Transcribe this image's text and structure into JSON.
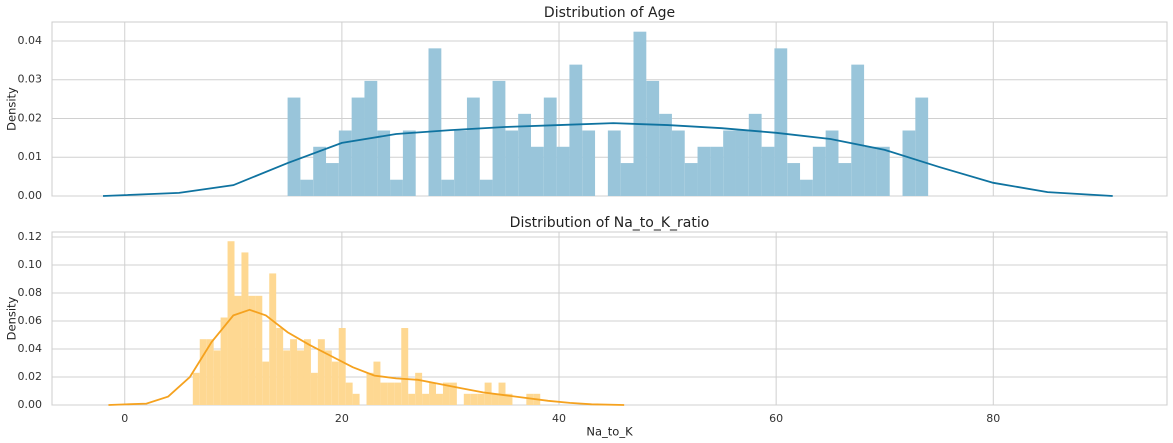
{
  "chart_data": [
    {
      "type": "histogram",
      "title": "Distribution of Age",
      "ylabel": "Density",
      "bins": [
        15,
        16.18,
        17.36,
        18.54,
        19.72,
        20.9,
        22.08,
        23.26,
        24.44,
        25.62,
        26.8,
        27.98,
        29.16,
        30.34,
        31.52,
        32.7,
        33.88,
        35.06,
        36.24,
        37.42,
        38.6,
        39.78,
        40.96,
        42.14,
        43.32,
        44.5,
        45.68,
        46.86,
        48.04,
        49.22,
        50.4,
        51.58,
        52.76,
        53.94,
        55.12,
        56.3,
        57.48,
        58.66,
        59.84,
        61.02,
        62.2,
        63.38,
        64.56,
        65.74,
        66.92,
        68.1,
        69.28,
        70.46,
        71.64,
        72.82,
        74
      ],
      "values": [
        0.0254,
        0.0042,
        0.0127,
        0.0085,
        0.0169,
        0.0254,
        0.0297,
        0.0169,
        0.0042,
        0.0169,
        0,
        0.0381,
        0.0042,
        0.0169,
        0.0254,
        0.0042,
        0.0297,
        0.0169,
        0.0212,
        0.0127,
        0.0254,
        0.0127,
        0.0339,
        0.0169,
        0,
        0.0169,
        0.0085,
        0.0424,
        0.0297,
        0.0212,
        0.0169,
        0.0085,
        0.0127,
        0.0127,
        0.0169,
        0.0169,
        0.0212,
        0.0127,
        0.0381,
        0.0085,
        0.0042,
        0.0127,
        0.0169,
        0.0085,
        0.0339,
        0.0127,
        0.0127,
        0,
        0.0169,
        0.0254
      ],
      "color": "#99c5da",
      "kde_color": "#0f73a0",
      "kde_x": [
        -2,
        5,
        10,
        15,
        20,
        25,
        30,
        35,
        40,
        45,
        50,
        55,
        60,
        65,
        70,
        75,
        80,
        85,
        91
      ],
      "kde_values": [
        0.0,
        0.0008,
        0.0028,
        0.0085,
        0.0137,
        0.016,
        0.017,
        0.0178,
        0.0183,
        0.0188,
        0.0183,
        0.0175,
        0.0163,
        0.0147,
        0.0119,
        0.0075,
        0.0034,
        0.001,
        0.0
      ],
      "xlim": [
        -6.7,
        96.0
      ],
      "xticks": [
        0,
        20,
        40,
        60,
        80
      ],
      "show_xtick_labels": false,
      "ylim": [
        0,
        0.0449
      ],
      "yticks": [
        {
          "value": 0,
          "label": "0.00"
        },
        {
          "value": 0.01,
          "label": "0.01"
        },
        {
          "value": 0.02,
          "label": "0.02"
        },
        {
          "value": 0.03,
          "label": "0.03"
        },
        {
          "value": 0.04,
          "label": "0.04"
        }
      ],
      "grid": true
    },
    {
      "type": "histogram",
      "title": "Distribution of Na_to_K_ratio",
      "ylabel": "Density",
      "xlabel": "Na_to_K",
      "bins": [
        6.27,
        6.91,
        7.55,
        8.19,
        8.83,
        9.47,
        10.11,
        10.75,
        11.39,
        12.03,
        12.67,
        13.31,
        13.95,
        14.59,
        15.23,
        15.87,
        16.51,
        17.15,
        17.79,
        18.43,
        19.07,
        19.71,
        20.35,
        20.99,
        21.63,
        22.27,
        22.91,
        23.55,
        24.19,
        24.83,
        25.47,
        26.11,
        26.75,
        27.39,
        28.03,
        28.67,
        29.31,
        29.95,
        30.59,
        31.23,
        31.87,
        32.51,
        33.15,
        33.79,
        34.43,
        35.07,
        35.71,
        36.35,
        36.99,
        37.63,
        38.27
      ],
      "values": [
        0.023,
        0.047,
        0.047,
        0.039,
        0.0625,
        0.117,
        0.078,
        0.109,
        0.078,
        0.078,
        0.031,
        0.094,
        0.055,
        0.039,
        0.047,
        0.039,
        0.047,
        0.023,
        0.047,
        0.039,
        0.031,
        0.055,
        0.016,
        0.008,
        0,
        0.023,
        0.031,
        0.016,
        0.016,
        0.016,
        0.055,
        0.008,
        0.023,
        0.008,
        0.016,
        0.008,
        0.016,
        0.016,
        0,
        0.008,
        0.008,
        0.008,
        0.016,
        0.008,
        0.016,
        0.008,
        0,
        0,
        0.008,
        0.008
      ],
      "color": "#fed892",
      "kde_color": "#f5a21f",
      "kde_x": [
        -1.5,
        2,
        4,
        6,
        8,
        10,
        11.5,
        13,
        15,
        17,
        19,
        21,
        23,
        25,
        27,
        29,
        31,
        33,
        35,
        37,
        39,
        41,
        43,
        46
      ],
      "kde_values": [
        0,
        0.001,
        0.006,
        0.02,
        0.045,
        0.064,
        0.068,
        0.064,
        0.052,
        0.043,
        0.035,
        0.027,
        0.021,
        0.019,
        0.018,
        0.015,
        0.012,
        0.009,
        0.007,
        0.005,
        0.003,
        0.0015,
        0.0005,
        0
      ],
      "xlim": [
        -6.7,
        96.0
      ],
      "xticks": [
        0,
        20,
        40,
        60,
        80
      ],
      "show_xtick_labels": true,
      "ylim": [
        0,
        0.1236
      ],
      "yticks": [
        {
          "value": 0,
          "label": "0.00"
        },
        {
          "value": 0.02,
          "label": "0.02"
        },
        {
          "value": 0.04,
          "label": "0.04"
        },
        {
          "value": 0.06,
          "label": "0.06"
        },
        {
          "value": 0.08,
          "label": "0.08"
        },
        {
          "value": 0.1,
          "label": "0.10"
        },
        {
          "value": 0.12,
          "label": "0.12"
        }
      ],
      "grid": true
    }
  ]
}
